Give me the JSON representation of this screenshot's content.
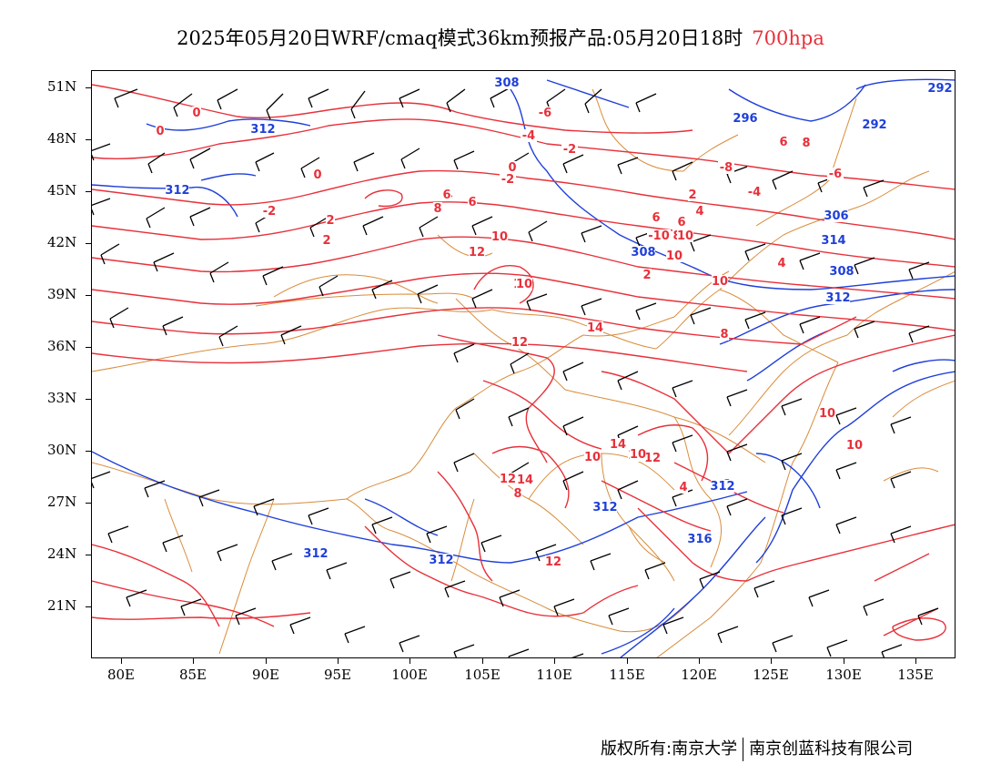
{
  "title": {
    "main": "2025年05月20日WRF/cmaq模式36km预报产品:05月20日18时",
    "level": "700hpa"
  },
  "axes": {
    "lat_labels": [
      "51N",
      "48N",
      "45N",
      "42N",
      "39N",
      "36N",
      "33N",
      "30N",
      "27N",
      "24N",
      "21N"
    ],
    "lon_labels": [
      "80E",
      "85E",
      "90E",
      "95E",
      "100E",
      "105E",
      "110E",
      "115E",
      "120E",
      "125E",
      "130E",
      "135E"
    ]
  },
  "map": {
    "colors": {
      "temperature": "#e8303a",
      "geopotential": "#1f3fd9",
      "boundaries": "#d98c3a",
      "wind_barbs": "#000000"
    },
    "temp_labels": [
      "0",
      "0",
      "-2",
      "0",
      "2",
      "2",
      "4",
      "4",
      "8",
      "6",
      "6",
      "-6",
      "-4",
      "-2",
      "-2",
      "0",
      "2",
      "4",
      "6",
      "6",
      "8",
      "10",
      "10",
      "12",
      "14",
      "10",
      "14",
      "12",
      "10",
      "10",
      "10",
      "10",
      "8",
      "6",
      "-6",
      "-8",
      "-10",
      "-4",
      "2",
      "4",
      "8",
      "6",
      "4",
      "12",
      "14",
      "12",
      "14",
      "12",
      "10",
      "12",
      "8",
      "10"
    ],
    "height_labels": [
      "308",
      "312",
      "312",
      "296",
      "292",
      "292",
      "306",
      "308",
      "314",
      "308",
      "312",
      "312",
      "312",
      "316",
      "312",
      "312"
    ]
  },
  "footer": {
    "left": "版权所有:南京大学",
    "right": "南京创蓝科技有限公司"
  }
}
